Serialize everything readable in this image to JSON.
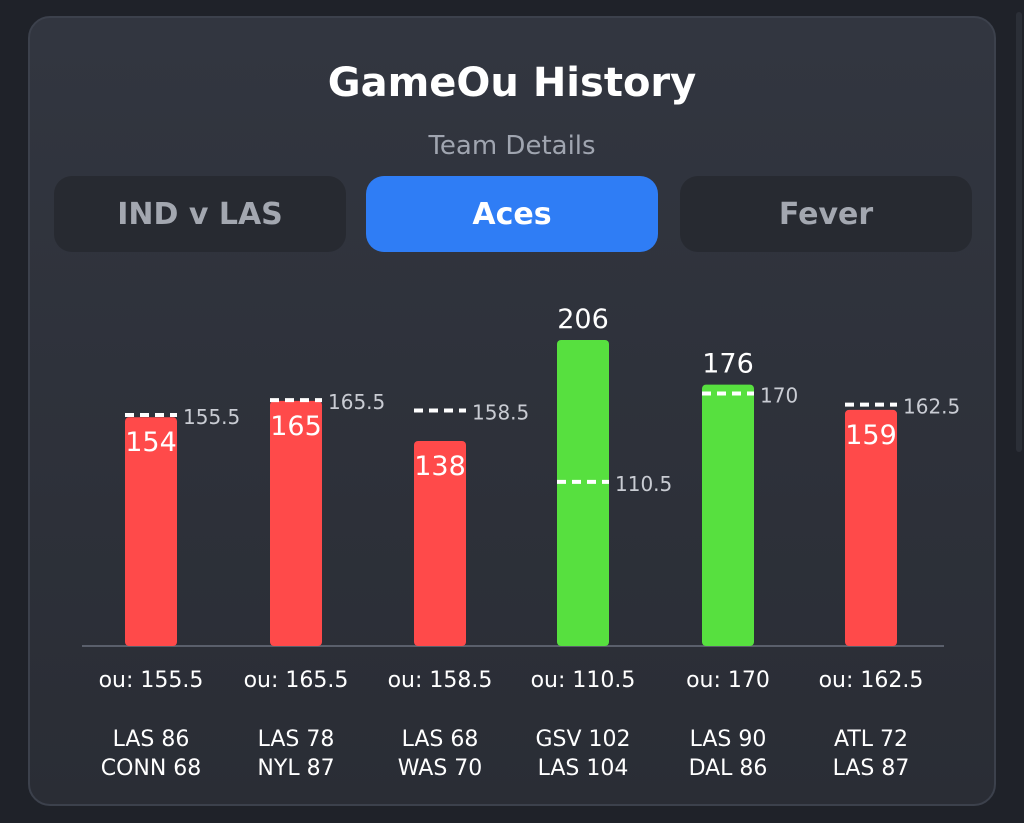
{
  "header": {
    "title": "GameOu History",
    "subtitle": "Team Details"
  },
  "tabs": [
    {
      "label": "IND v LAS",
      "active": false
    },
    {
      "label": "Aces",
      "active": true
    },
    {
      "label": "Fever",
      "active": false
    }
  ],
  "colors": {
    "over": "#57e03f",
    "under": "#ff4a4a",
    "accent": "#2f7df5",
    "line_label": "#c9ccd3"
  },
  "chart_data": {
    "type": "bar",
    "title": "",
    "xlabel": "",
    "ylabel": "",
    "ylim": [
      0,
      206
    ],
    "grid": false,
    "legend": "none",
    "bars": [
      {
        "total": 154,
        "line": 155.5,
        "ou_label": "ou: 155.5",
        "game": [
          "LAS 86",
          "CONN 68"
        ],
        "result": "under"
      },
      {
        "total": 165,
        "line": 165.5,
        "ou_label": "ou: 165.5",
        "game": [
          "LAS 78",
          "NYL 87"
        ],
        "result": "under"
      },
      {
        "total": 138,
        "line": 158.5,
        "ou_label": "ou: 158.5",
        "game": [
          "LAS 68",
          "WAS 70"
        ],
        "result": "under"
      },
      {
        "total": 206,
        "line": 110.5,
        "ou_label": "ou: 110.5",
        "game": [
          "GSV 102",
          "LAS 104"
        ],
        "result": "over"
      },
      {
        "total": 176,
        "line": 170,
        "ou_label": "ou: 170",
        "game": [
          "LAS 90",
          "DAL 86"
        ],
        "result": "over"
      },
      {
        "total": 159,
        "line": 162.5,
        "ou_label": "ou: 162.5",
        "game": [
          "ATL 72",
          "LAS 87"
        ],
        "result": "under"
      }
    ]
  }
}
